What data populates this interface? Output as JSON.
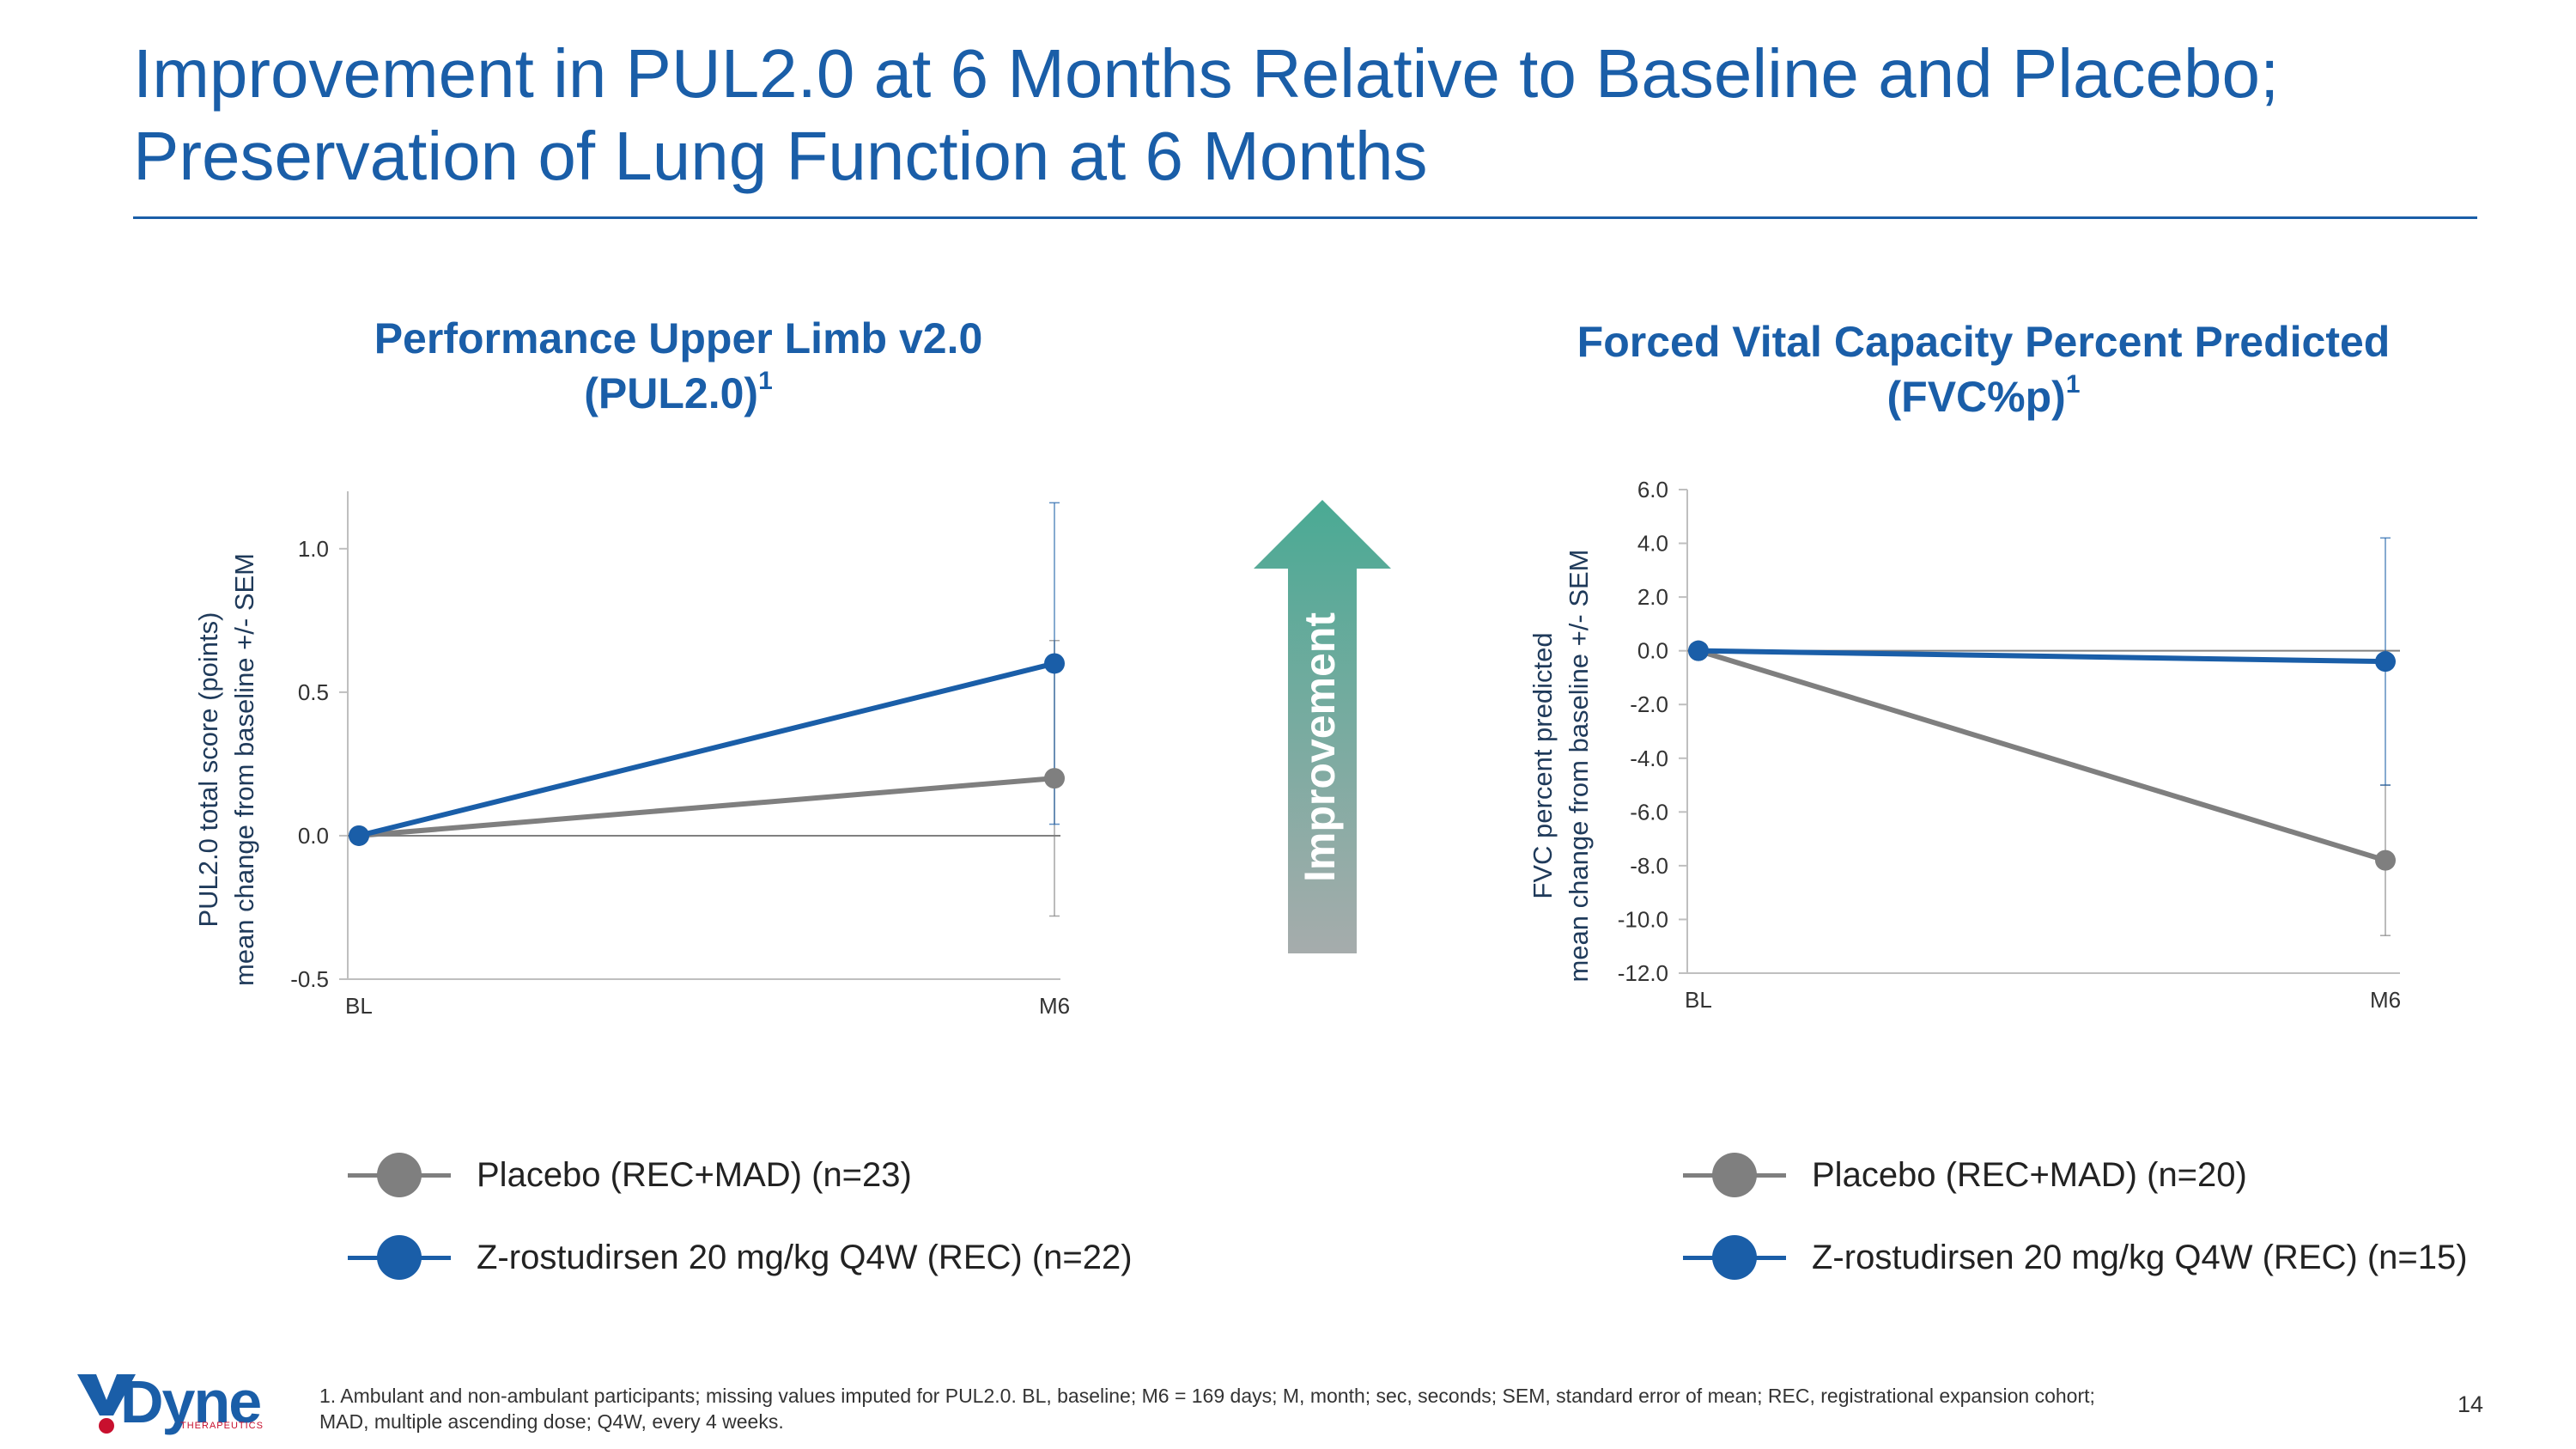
{
  "title": "Improvement in PUL2.0 at 6 Months Relative to Baseline and Placebo; Preservation of Lung Function at 6 Months",
  "colors": {
    "brand": "#1a5ea8",
    "placebo": "#7f7f7f",
    "treatment": "#1a5ea8",
    "arrow_top": "#4aaa94",
    "arrow_bottom": "#a6acac",
    "logo_red": "#c8102e"
  },
  "improvement_label": "Improvement",
  "footnote_line1": "1. Ambulant and non-ambulant participants; missing values imputed for PUL2.0. BL, baseline; M6 = 169 days; M, month; sec, seconds; SEM, standard error of mean; REC, registrational expansion cohort;",
  "footnote_line2": "MAD, multiple ascending dose; Q4W, every 4 weeks.",
  "page_number": "14",
  "logo": {
    "name": "Dyne",
    "sub": "THERAPEUTICS"
  },
  "chart_data": [
    {
      "type": "line",
      "title_main": "Performance Upper Limb v2.0",
      "title_sub": "(PUL2.0)",
      "title_sup": "1",
      "ylabel_line1": "PUL2.0 total score (points)",
      "ylabel_line2": "mean change from baseline +/- SEM",
      "categories": [
        "BL",
        "M6"
      ],
      "ylim": [
        -0.5,
        1.2
      ],
      "yticks": [
        -0.5,
        0.0,
        0.5,
        1.0
      ],
      "tick_labels": [
        "-0.5",
        "0.0",
        "0.5",
        "1.0"
      ],
      "series": [
        {
          "name": "Placebo (REC+MAD) (n=23)",
          "color": "#7f7f7f",
          "values": [
            0.0,
            0.2
          ],
          "err_low": [
            0,
            0.48
          ],
          "err_high": [
            0,
            0.48
          ]
        },
        {
          "name": "Z-rostudirsen 20 mg/kg Q4W (REC) (n=22)",
          "color": "#1a5ea8",
          "values": [
            0.0,
            0.6
          ],
          "err_low": [
            0,
            0.56
          ],
          "err_high": [
            0,
            0.56
          ]
        }
      ]
    },
    {
      "type": "line",
      "title_main": "Forced Vital Capacity Percent Predicted",
      "title_sub": "(FVC%p)",
      "title_sup": "1",
      "ylabel_line1": "FVC percent predicted",
      "ylabel_line2": "mean change from baseline +/- SEM",
      "categories": [
        "BL",
        "M6"
      ],
      "ylim": [
        -12.0,
        6.0
      ],
      "yticks": [
        -12,
        -10,
        -8,
        -6,
        -4,
        -2,
        0,
        2,
        4,
        6
      ],
      "tick_labels": [
        "-12.0",
        "-10.0",
        "-8.0",
        "-6.0",
        "-4.0",
        "-2.0",
        "0.0",
        "2.0",
        "4.0",
        "6.0"
      ],
      "series": [
        {
          "name": "Placebo (REC+MAD) (n=20)",
          "color": "#7f7f7f",
          "values": [
            0.0,
            -7.8
          ],
          "err_low": [
            0,
            2.8
          ],
          "err_high": [
            0,
            2.8
          ]
        },
        {
          "name": "Z-rostudirsen 20 mg/kg Q4W (REC) (n=15)",
          "color": "#1a5ea8",
          "values": [
            0.0,
            -0.4
          ],
          "err_low": [
            0,
            4.6
          ],
          "err_high": [
            0,
            4.6
          ]
        }
      ]
    }
  ]
}
